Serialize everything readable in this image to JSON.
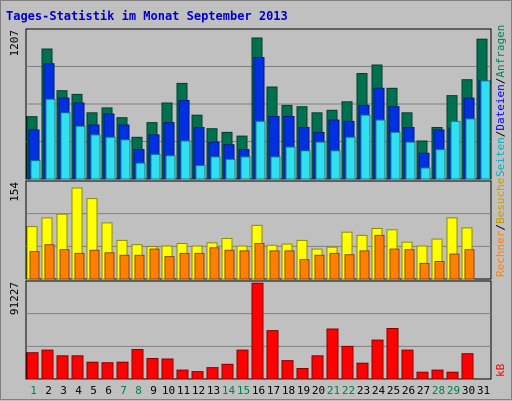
{
  "chart_data": {
    "type": "bar",
    "title": "Tages-Statistik im Monat September 2013",
    "x": [
      "1",
      "2",
      "3",
      "4",
      "5",
      "6",
      "7",
      "8",
      "9",
      "10",
      "11",
      "12",
      "13",
      "14",
      "15",
      "16",
      "17",
      "18",
      "19",
      "20",
      "21",
      "22",
      "23",
      "24",
      "25",
      "26",
      "27",
      "28",
      "29",
      "30",
      "31"
    ],
    "weekend_days": [
      "1",
      "7",
      "8",
      "14",
      "15",
      "21",
      "22",
      "28",
      "29"
    ],
    "panels": [
      {
        "name": "top",
        "max_label": "1207",
        "ylim": [
          0,
          1207
        ],
        "series": [
          {
            "name": "Anfragen",
            "color": "#007050",
            "values": [
              509,
              1060,
              720,
              690,
              540,
              580,
              500,
              340,
              460,
              620,
              780,
              520,
              410,
              380,
              350,
              1150,
              750,
              600,
              590,
              540,
              560,
              630,
              860,
              930,
              740,
              540,
              310,
              420,
              680,
              810,
              1140
            ]
          },
          {
            "name": "Dateien",
            "color": "#0030e0",
            "values": [
              400,
              940,
              660,
              620,
              440,
              530,
              440,
              240,
              360,
              460,
              640,
              420,
              300,
              280,
              240,
              990,
              510,
              510,
              420,
              380,
              480,
              470,
              600,
              740,
              590,
              420,
              210,
              400,
              410,
              660,
              800
            ]
          },
          {
            "name": "Seiten",
            "color": "#30e0f0",
            "values": [
              150,
              650,
              540,
              430,
              360,
              340,
              320,
              130,
              200,
              190,
              310,
              110,
              180,
              160,
              180,
              470,
              180,
              260,
              230,
              300,
              230,
              340,
              520,
              480,
              380,
              300,
              90,
              240,
              470,
              490,
              800
            ]
          }
        ]
      },
      {
        "name": "middle",
        "max_label": "154",
        "ylim": [
          0,
          154
        ],
        "series": [
          {
            "name": "Besuche",
            "color": "#ffff00",
            "values": [
              84,
              98,
              104,
              146,
              129,
              90,
              62,
              55,
              52,
              53,
              57,
              53,
              58,
              65,
              53,
              86,
              54,
              56,
              62,
              48,
              51,
              75,
              70,
              81,
              79,
              59,
              53,
              64,
              98,
              82,
              0
            ]
          },
          {
            "name": "Rechner",
            "color": "#ff8000",
            "values": [
              44,
              55,
              47,
              41,
              46,
              42,
              38,
              38,
              48,
              36,
              41,
              41,
              50,
              46,
              45,
              57,
              45,
              45,
              31,
              38,
              41,
              39,
              45,
              70,
              48,
              47,
              25,
              28,
              40,
              47,
              0
            ]
          }
        ]
      },
      {
        "name": "bottom",
        "max_label": "91227",
        "ylim": [
          0,
          91227
        ],
        "series": [
          {
            "name": "kB",
            "color": "#ff0000",
            "values": [
              25000,
              27500,
              22000,
              22000,
              16000,
              15500,
              16000,
              28000,
              19500,
              19000,
              8500,
              7000,
              10800,
              14000,
              27500,
              91000,
              46000,
              17500,
              10000,
              22000,
              47500,
              31000,
              15000,
              37000,
              48000,
              27500,
              6500,
              8500,
              6500,
              24000,
              0
            ]
          }
        ]
      }
    ],
    "legend_order": [
      "Anfragen",
      "Dateien",
      "Seiten",
      "Besuche",
      "Rechner",
      "kB"
    ]
  },
  "legend_separator": "/"
}
